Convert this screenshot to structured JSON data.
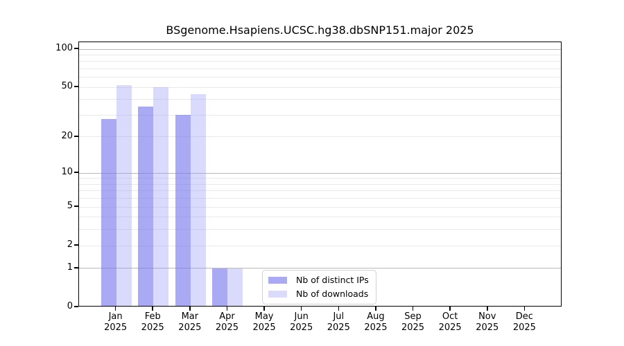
{
  "chart_data": {
    "type": "bar",
    "title": "BSgenome.Hsapiens.UCSC.hg38.dbSNP151.major 2025",
    "categories": [
      "Jan",
      "Feb",
      "Mar",
      "Apr",
      "May",
      "Jun",
      "Jul",
      "Aug",
      "Sep",
      "Oct",
      "Nov",
      "Dec"
    ],
    "x_tick_year": "2025",
    "series": [
      {
        "name": "Nb of distinct IPs",
        "color": "#a9a9f4",
        "fill": "rgba(112,112,236,0.6)",
        "values": [
          28,
          35,
          30,
          1,
          0,
          0,
          0,
          0,
          0,
          0,
          0,
          0
        ]
      },
      {
        "name": "Nb of downloads",
        "color": "#dadafb",
        "fill": "rgba(140,140,245,0.32)",
        "values": [
          52,
          50,
          44,
          1,
          0,
          0,
          0,
          0,
          0,
          0,
          0,
          0
        ]
      }
    ],
    "yscale": "log1p",
    "ylim": [
      0,
      113
    ],
    "ytick_labels": [
      100,
      50,
      20,
      10,
      5,
      2,
      1,
      0
    ],
    "major_gridlines": [
      1,
      10,
      100
    ],
    "minor_gridlines": [
      2,
      3,
      4,
      5,
      6,
      7,
      8,
      9,
      20,
      30,
      40,
      50,
      60,
      70,
      80,
      90
    ],
    "grid_major_color": "#b8b8b8",
    "grid_minor_color": "#e9e9e9",
    "axis_color": "#000000",
    "grid": true,
    "legend_position": "lower center inside"
  }
}
